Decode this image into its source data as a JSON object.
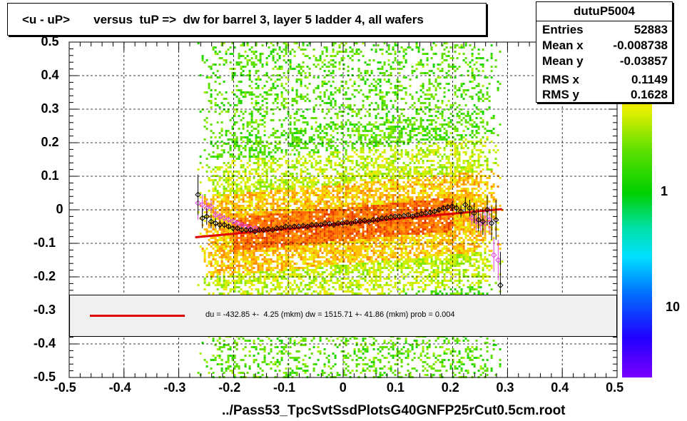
{
  "title": "<u - uP>       versus  tuP =>  dw for barrel 3, layer 5 ladder 4, all wafers",
  "stats": {
    "name": "dutuP5004",
    "rows": [
      {
        "key": "Entries",
        "value": "52883"
      },
      {
        "key": "Mean x",
        "value": "-0.008738"
      },
      {
        "key": "Mean y",
        "value": "-0.03857"
      },
      {
        "key": "RMS x",
        "value": "0.1149"
      },
      {
        "key": "RMS y",
        "value": "0.1628"
      }
    ]
  },
  "legend_text": "du = -432.85 +-  4.25 (mkm) dw = 1515.71 +- 41.86 (mkm) prob = 0.004",
  "x_axis_title": "../Pass53_TpcSvtSsdPlotsG40GNFP25rCut0.5cm.root",
  "colorbar_labels": [
    "1",
    "10"
  ],
  "colors": {
    "fit_line": "#e00000",
    "profile_black": "#000000",
    "profile_magenta": "#e040e0",
    "legend_bg": "#f0f0f0"
  },
  "chart_data": {
    "type": "heatmap",
    "xlim": [
      -0.5,
      0.5
    ],
    "ylim": [
      -0.5,
      0.5
    ],
    "x_ticks": [
      "-0.5",
      "-0.4",
      "-0.3",
      "-0.2",
      "-0.1",
      "0",
      "0.1",
      "0.2",
      "0.3",
      "0.4",
      "0.5"
    ],
    "y_ticks": [
      "0.5",
      "0.4",
      "0.3",
      "0.2",
      "0.1",
      "0",
      "-0.1",
      "-0.2",
      "-0.3",
      "-0.4",
      "-0.5"
    ],
    "grid": true,
    "density_x_range": [
      -0.27,
      0.29
    ],
    "fit_line": {
      "x": [
        -0.27,
        0.29
      ],
      "y": [
        -0.082,
        0.002
      ]
    },
    "profile_black": {
      "x": [
        -0.265,
        -0.257,
        -0.249,
        -0.241,
        -0.233,
        -0.225,
        -0.217,
        -0.209,
        -0.201,
        -0.193,
        -0.185,
        -0.177,
        -0.169,
        -0.161,
        -0.153,
        -0.145,
        -0.137,
        -0.129,
        -0.121,
        -0.113,
        -0.105,
        -0.097,
        -0.089,
        -0.081,
        -0.073,
        -0.065,
        -0.057,
        -0.049,
        -0.041,
        -0.033,
        -0.025,
        -0.017,
        -0.009,
        -0.001,
        0.007,
        0.015,
        0.023,
        0.031,
        0.039,
        0.047,
        0.055,
        0.063,
        0.071,
        0.079,
        0.087,
        0.095,
        0.103,
        0.111,
        0.119,
        0.127,
        0.135,
        0.143,
        0.151,
        0.159,
        0.167,
        0.175,
        0.183,
        0.191,
        0.199,
        0.207,
        0.215,
        0.223,
        0.231,
        0.239,
        0.247,
        0.255,
        0.263,
        0.271,
        0.279,
        0.287
      ],
      "y": [
        0.045,
        -0.025,
        -0.02,
        -0.035,
        -0.04,
        -0.045,
        -0.045,
        -0.05,
        -0.055,
        -0.055,
        -0.06,
        -0.06,
        -0.06,
        -0.065,
        -0.06,
        -0.06,
        -0.058,
        -0.06,
        -0.055,
        -0.055,
        -0.05,
        -0.052,
        -0.05,
        -0.05,
        -0.048,
        -0.05,
        -0.045,
        -0.045,
        -0.045,
        -0.04,
        -0.042,
        -0.045,
        -0.04,
        -0.04,
        -0.038,
        -0.04,
        -0.035,
        -0.035,
        -0.032,
        -0.035,
        -0.03,
        -0.03,
        -0.025,
        -0.025,
        -0.022,
        -0.02,
        -0.02,
        -0.018,
        -0.015,
        -0.02,
        -0.015,
        -0.012,
        -0.01,
        -0.008,
        -0.005,
        0.0,
        0.005,
        0.008,
        0.01,
        0.005,
        -0.005,
        0.015,
        0.005,
        -0.01,
        -0.03,
        -0.035,
        0.0,
        -0.04,
        -0.03,
        -0.225
      ],
      "err": [
        0.06,
        0.03,
        0.025,
        0.02,
        0.015,
        0.012,
        0.01,
        0.008,
        0.007,
        0.006,
        0.006,
        0.005,
        0.005,
        0.005,
        0.004,
        0.004,
        0.004,
        0.004,
        0.004,
        0.004,
        0.004,
        0.004,
        0.004,
        0.004,
        0.004,
        0.004,
        0.004,
        0.004,
        0.004,
        0.004,
        0.004,
        0.004,
        0.004,
        0.004,
        0.004,
        0.004,
        0.004,
        0.004,
        0.004,
        0.004,
        0.004,
        0.004,
        0.004,
        0.004,
        0.004,
        0.004,
        0.004,
        0.004,
        0.004,
        0.004,
        0.005,
        0.005,
        0.005,
        0.006,
        0.006,
        0.007,
        0.008,
        0.01,
        0.012,
        0.015,
        0.018,
        0.022,
        0.025,
        0.03,
        0.035,
        0.04,
        0.045,
        0.05,
        0.06,
        0.1
      ]
    },
    "profile_magenta": {
      "x": [
        -0.265,
        -0.257,
        -0.249,
        -0.241,
        -0.233,
        -0.225,
        -0.217,
        -0.209,
        -0.201,
        -0.193,
        -0.185,
        -0.177,
        -0.169,
        -0.161,
        -0.153,
        0.235,
        0.243,
        0.251,
        0.259,
        0.267,
        0.275,
        0.283
      ],
      "y": [
        0.02,
        0.015,
        0.005,
        0.01,
        -0.015,
        -0.02,
        -0.025,
        -0.03,
        -0.035,
        -0.04,
        -0.045,
        -0.05,
        -0.055,
        -0.055,
        -0.06,
        -0.025,
        -0.035,
        -0.04,
        -0.04,
        -0.03,
        -0.135,
        -0.15
      ],
      "err": [
        0.05,
        0.03,
        0.025,
        0.02,
        0.015,
        0.012,
        0.01,
        0.008,
        0.007,
        0.006,
        0.006,
        0.005,
        0.005,
        0.005,
        0.004,
        0.02,
        0.025,
        0.03,
        0.035,
        0.04,
        0.05,
        0.06
      ]
    }
  }
}
